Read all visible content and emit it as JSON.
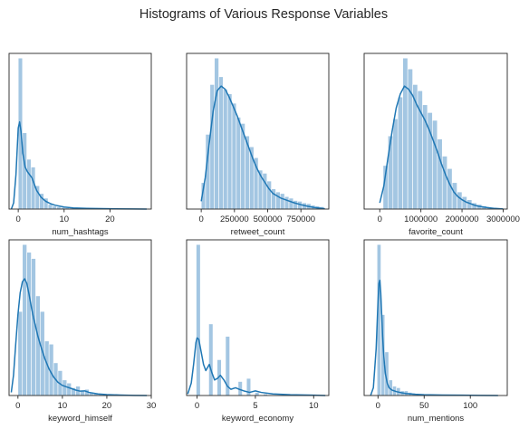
{
  "figure": {
    "title": "Histograms of Various Response Variables"
  },
  "colors": {
    "bar": "#a3c6e2",
    "kde": "#1f77b4"
  },
  "chart_data": [
    {
      "type": "bar",
      "subtype": "histogram-with-kde",
      "xlabel": "num_hashtags",
      "xlim": [
        -2,
        29
      ],
      "xticks": [
        0,
        10,
        20
      ],
      "yticks": "none",
      "bin_width": 0.93,
      "bins_start": 0,
      "bin_heights": [
        0.97,
        0.49,
        0.32,
        0.27,
        0.15,
        0.1,
        0.07,
        0.03,
        0.02,
        0.015,
        0.01,
        0.008,
        0.006,
        0.005,
        0.004,
        0.003,
        0.003,
        0.002,
        0.002,
        0.002,
        0.001,
        0.001,
        0.001,
        0,
        0,
        0,
        0,
        0,
        0.001,
        0.001
      ],
      "kde": [
        [
          -1.5,
          0
        ],
        [
          -1,
          0.04
        ],
        [
          -0.5,
          0.22
        ],
        [
          0,
          0.52
        ],
        [
          0.3,
          0.56
        ],
        [
          0.6,
          0.5
        ],
        [
          1,
          0.36
        ],
        [
          1.5,
          0.27
        ],
        [
          2,
          0.24
        ],
        [
          3,
          0.2
        ],
        [
          4,
          0.12
        ],
        [
          5,
          0.075
        ],
        [
          6,
          0.05
        ],
        [
          7,
          0.035
        ],
        [
          8,
          0.025
        ],
        [
          10,
          0.013
        ],
        [
          12,
          0.007
        ],
        [
          15,
          0.004
        ],
        [
          20,
          0.002
        ],
        [
          25,
          0.001
        ],
        [
          28,
          0
        ]
      ]
    },
    {
      "type": "bar",
      "subtype": "histogram-with-kde",
      "xlabel": "retweet_count",
      "xlim": [
        -110000,
        960000
      ],
      "xticks": [
        0,
        250000,
        500000,
        750000
      ],
      "yticks": "none",
      "bin_width": 33000,
      "bins_start": 0,
      "bin_heights": [
        0.17,
        0.48,
        0.8,
        0.97,
        0.85,
        0.77,
        0.74,
        0.68,
        0.59,
        0.55,
        0.47,
        0.4,
        0.33,
        0.25,
        0.23,
        0.18,
        0.13,
        0.11,
        0.1,
        0.08,
        0.07,
        0.055,
        0.05,
        0.04,
        0.035,
        0.025,
        0.02,
        0.015
      ],
      "kde": [
        [
          0,
          0.05
        ],
        [
          30000,
          0.2
        ],
        [
          60000,
          0.42
        ],
        [
          90000,
          0.63
        ],
        [
          120000,
          0.76
        ],
        [
          150000,
          0.79
        ],
        [
          180000,
          0.77
        ],
        [
          210000,
          0.72
        ],
        [
          240000,
          0.66
        ],
        [
          270000,
          0.6
        ],
        [
          300000,
          0.53
        ],
        [
          330000,
          0.46
        ],
        [
          360000,
          0.39
        ],
        [
          390000,
          0.32
        ],
        [
          420000,
          0.26
        ],
        [
          450000,
          0.21
        ],
        [
          480000,
          0.17
        ],
        [
          510000,
          0.13
        ],
        [
          540000,
          0.1
        ],
        [
          570000,
          0.085
        ],
        [
          600000,
          0.07
        ],
        [
          650000,
          0.055
        ],
        [
          700000,
          0.04
        ],
        [
          750000,
          0.028
        ],
        [
          800000,
          0.018
        ],
        [
          850000,
          0.01
        ],
        [
          900000,
          0.005
        ],
        [
          930000,
          0.002
        ]
      ]
    },
    {
      "type": "bar",
      "subtype": "histogram-with-kde",
      "xlabel": "favorite_count",
      "xlim": [
        -380000,
        3100000
      ],
      "xticks": [
        0,
        1000000,
        2000000,
        3000000
      ],
      "yticks": "none",
      "bin_width": 120000,
      "bins_start": 80000,
      "bin_heights": [
        0.28,
        0.47,
        0.58,
        0.72,
        0.97,
        0.9,
        0.8,
        0.76,
        0.67,
        0.62,
        0.57,
        0.45,
        0.34,
        0.26,
        0.17,
        0.11,
        0.08,
        0.06,
        0.04,
        0.03,
        0.02,
        0.01,
        0.005
      ],
      "kde": [
        [
          0,
          0.04
        ],
        [
          100000,
          0.15
        ],
        [
          200000,
          0.33
        ],
        [
          300000,
          0.5
        ],
        [
          400000,
          0.65
        ],
        [
          500000,
          0.74
        ],
        [
          600000,
          0.79
        ],
        [
          700000,
          0.77
        ],
        [
          800000,
          0.73
        ],
        [
          900000,
          0.67
        ],
        [
          1000000,
          0.62
        ],
        [
          1100000,
          0.57
        ],
        [
          1200000,
          0.51
        ],
        [
          1300000,
          0.44
        ],
        [
          1400000,
          0.37
        ],
        [
          1500000,
          0.29
        ],
        [
          1600000,
          0.22
        ],
        [
          1700000,
          0.16
        ],
        [
          1800000,
          0.11
        ],
        [
          1900000,
          0.08
        ],
        [
          2000000,
          0.06
        ],
        [
          2100000,
          0.045
        ],
        [
          2200000,
          0.035
        ],
        [
          2300000,
          0.025
        ],
        [
          2400000,
          0.018
        ],
        [
          2600000,
          0.01
        ],
        [
          2800000,
          0.004
        ],
        [
          3000000,
          0.001
        ]
      ]
    },
    {
      "type": "bar",
      "subtype": "histogram-with-kde",
      "xlabel": "keyword_himself",
      "xlim": [
        -2,
        30
      ],
      "xticks": [
        0,
        10,
        20,
        30
      ],
      "yticks": "none",
      "bin_width": 1.0,
      "bins_start": 0,
      "bin_heights": [
        0.54,
        0.97,
        0.92,
        0.88,
        0.64,
        0.54,
        0.35,
        0.33,
        0.21,
        0.16,
        0.1,
        0.08,
        0.05,
        0.06,
        0.03,
        0.04,
        0.02,
        0.015,
        0.01,
        0.008,
        0.006,
        0.005,
        0.004,
        0.003,
        0.002,
        0.002,
        0.001,
        0.001,
        0.001
      ],
      "kde": [
        [
          -1.5,
          0.02
        ],
        [
          -1,
          0.13
        ],
        [
          -0.5,
          0.33
        ],
        [
          0,
          0.52
        ],
        [
          0.5,
          0.66
        ],
        [
          1,
          0.73
        ],
        [
          1.5,
          0.75
        ],
        [
          2,
          0.72
        ],
        [
          2.5,
          0.65
        ],
        [
          3,
          0.57
        ],
        [
          3.5,
          0.5
        ],
        [
          4,
          0.44
        ],
        [
          4.5,
          0.38
        ],
        [
          5,
          0.33
        ],
        [
          6,
          0.24
        ],
        [
          7,
          0.17
        ],
        [
          8,
          0.12
        ],
        [
          9,
          0.085
        ],
        [
          10,
          0.065
        ],
        [
          11,
          0.055
        ],
        [
          12,
          0.045
        ],
        [
          13,
          0.035
        ],
        [
          14,
          0.028
        ],
        [
          15,
          0.03
        ],
        [
          16,
          0.02
        ],
        [
          18,
          0.01
        ],
        [
          20,
          0.006
        ],
        [
          23,
          0.003
        ],
        [
          26,
          0.001
        ],
        [
          29,
          0
        ]
      ]
    },
    {
      "type": "bar",
      "subtype": "histogram-with-kde",
      "xlabel": "keyword_economy",
      "xlim": [
        -0.9,
        11.3
      ],
      "xticks": [
        0,
        5,
        10
      ],
      "yticks": "none",
      "bin_width": 0.36,
      "bins_start": -0.08,
      "bin_heights": [
        0.97,
        0,
        0,
        0.46,
        0,
        0.23,
        0,
        0.38,
        0,
        0,
        0.09,
        0,
        0.11,
        0,
        0.02,
        0,
        0.01,
        0,
        0.005,
        0,
        0.003,
        0,
        0.002,
        0,
        0.001,
        0,
        0,
        0,
        0,
        0,
        0,
        0.001
      ],
      "kde": [
        [
          -0.8,
          0.01
        ],
        [
          -0.5,
          0.08
        ],
        [
          -0.3,
          0.2
        ],
        [
          -0.1,
          0.34
        ],
        [
          0,
          0.37
        ],
        [
          0.15,
          0.36
        ],
        [
          0.35,
          0.28
        ],
        [
          0.55,
          0.2
        ],
        [
          0.75,
          0.16
        ],
        [
          0.9,
          0.18
        ],
        [
          1.05,
          0.2
        ],
        [
          1.25,
          0.15
        ],
        [
          1.5,
          0.1
        ],
        [
          1.75,
          0.11
        ],
        [
          2,
          0.13
        ],
        [
          2.3,
          0.1
        ],
        [
          2.6,
          0.06
        ],
        [
          2.9,
          0.04
        ],
        [
          3.3,
          0.05
        ],
        [
          3.6,
          0.04
        ],
        [
          4,
          0.03
        ],
        [
          4.5,
          0.02
        ],
        [
          5,
          0.03
        ],
        [
          5.5,
          0.02
        ],
        [
          6.5,
          0.01
        ],
        [
          8,
          0.005
        ],
        [
          10,
          0.002
        ],
        [
          11,
          0
        ]
      ]
    },
    {
      "type": "bar",
      "subtype": "histogram-with-kde",
      "xlabel": "num_mentions",
      "xlim": [
        -15,
        140
      ],
      "xticks": [
        0,
        50,
        100
      ],
      "yticks": "none",
      "bin_width": 4.2,
      "bins_start": -1,
      "bin_heights": [
        0.97,
        0.52,
        0.28,
        0.1,
        0.06,
        0.05,
        0.03,
        0.03,
        0.02,
        0.015,
        0.01,
        0.008,
        0.006,
        0.005,
        0.004,
        0.003,
        0.003,
        0.002,
        0.002,
        0.002,
        0.001,
        0.001,
        0.001,
        0.001,
        0.001,
        0,
        0,
        0,
        0,
        0,
        0,
        0.001
      ],
      "kde": [
        [
          -8,
          0
        ],
        [
          -5,
          0.05
        ],
        [
          -2,
          0.3
        ],
        [
          0,
          0.6
        ],
        [
          1,
          0.72
        ],
        [
          2,
          0.74
        ],
        [
          3,
          0.66
        ],
        [
          4,
          0.52
        ],
        [
          5,
          0.38
        ],
        [
          6,
          0.28
        ],
        [
          7,
          0.2
        ],
        [
          8,
          0.14
        ],
        [
          10,
          0.08
        ],
        [
          12,
          0.05
        ],
        [
          15,
          0.035
        ],
        [
          20,
          0.025
        ],
        [
          25,
          0.018
        ],
        [
          30,
          0.013
        ],
        [
          40,
          0.008
        ],
        [
          50,
          0.005
        ],
        [
          70,
          0.003
        ],
        [
          90,
          0.002
        ],
        [
          110,
          0.001
        ],
        [
          130,
          0
        ]
      ]
    }
  ]
}
